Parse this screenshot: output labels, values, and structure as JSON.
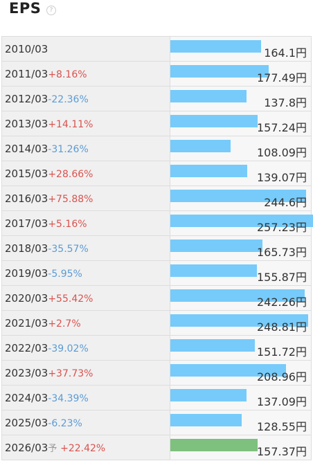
{
  "title": "EPS",
  "help_icon": "question-icon",
  "colors": {
    "bar": "#76cbfa",
    "estimate_bar": "#7ec07e",
    "positive": "#d9534f",
    "negative": "#5b9bd5"
  },
  "chart_data": {
    "type": "bar",
    "orientation": "horizontal",
    "unit": "円",
    "max_value": 257.23,
    "rows": [
      {
        "period": "2010/03",
        "change": "",
        "estimate": "",
        "value": 164.1,
        "value_label": "164.1円"
      },
      {
        "period": "2011/03",
        "change": "+8.16%",
        "estimate": "",
        "value": 177.49,
        "value_label": "177.49円"
      },
      {
        "period": "2012/03",
        "change": "-22.36%",
        "estimate": "",
        "value": 137.8,
        "value_label": "137.8円"
      },
      {
        "period": "2013/03",
        "change": "+14.11%",
        "estimate": "",
        "value": 157.24,
        "value_label": "157.24円"
      },
      {
        "period": "2014/03",
        "change": "-31.26%",
        "estimate": "",
        "value": 108.09,
        "value_label": "108.09円"
      },
      {
        "period": "2015/03",
        "change": "+28.66%",
        "estimate": "",
        "value": 139.07,
        "value_label": "139.07円"
      },
      {
        "period": "2016/03",
        "change": "+75.88%",
        "estimate": "",
        "value": 244.6,
        "value_label": "244.6円"
      },
      {
        "period": "2017/03",
        "change": "+5.16%",
        "estimate": "",
        "value": 257.23,
        "value_label": "257.23円"
      },
      {
        "period": "2018/03",
        "change": "-35.57%",
        "estimate": "",
        "value": 165.73,
        "value_label": "165.73円"
      },
      {
        "period": "2019/03",
        "change": "-5.95%",
        "estimate": "",
        "value": 155.87,
        "value_label": "155.87円"
      },
      {
        "period": "2020/03",
        "change": "+55.42%",
        "estimate": "",
        "value": 242.26,
        "value_label": "242.26円"
      },
      {
        "period": "2021/03",
        "change": "+2.7%",
        "estimate": "",
        "value": 248.81,
        "value_label": "248.81円"
      },
      {
        "period": "2022/03",
        "change": "-39.02%",
        "estimate": "",
        "value": 151.72,
        "value_label": "151.72円"
      },
      {
        "period": "2023/03",
        "change": "+37.73%",
        "estimate": "",
        "value": 208.96,
        "value_label": "208.96円"
      },
      {
        "period": "2024/03",
        "change": "-34.39%",
        "estimate": "",
        "value": 137.09,
        "value_label": "137.09円"
      },
      {
        "period": "2025/03",
        "change": "-6.23%",
        "estimate": "",
        "value": 128.55,
        "value_label": "128.55円"
      },
      {
        "period": "2026/03",
        "change": "+22.42%",
        "estimate": "予",
        "value": 157.37,
        "value_label": "157.37円"
      }
    ]
  }
}
